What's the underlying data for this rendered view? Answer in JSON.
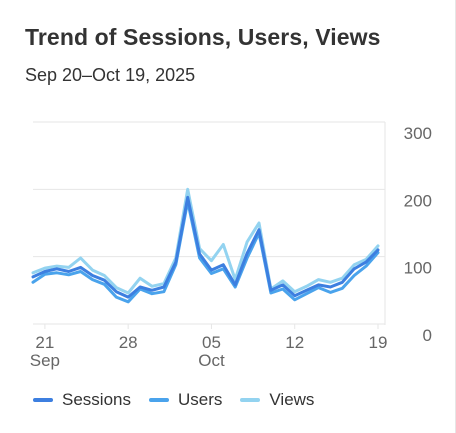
{
  "header": {
    "title": "Trend of Sessions, Users, Views",
    "subtitle": "Sep 20–Oct 19, 2025"
  },
  "colors": {
    "sessions": "#3d7fe0",
    "users": "#4aa3ec",
    "views": "#93d3f0",
    "grid": "#e6e6e6",
    "axis_text": "#666666"
  },
  "chart_data": {
    "type": "line",
    "x": [
      "2025-09-20",
      "2025-09-21",
      "2025-09-22",
      "2025-09-23",
      "2025-09-24",
      "2025-09-25",
      "2025-09-26",
      "2025-09-27",
      "2025-09-28",
      "2025-09-29",
      "2025-09-30",
      "2025-10-01",
      "2025-10-02",
      "2025-10-03",
      "2025-10-04",
      "2025-10-05",
      "2025-10-06",
      "2025-10-07",
      "2025-10-08",
      "2025-10-09",
      "2025-10-10",
      "2025-10-11",
      "2025-10-12",
      "2025-10-13",
      "2025-10-14",
      "2025-10-15",
      "2025-10-16",
      "2025-10-17",
      "2025-10-18",
      "2025-10-19"
    ],
    "x_ticks": [
      {
        "date": "2025-09-21",
        "label": "21",
        "sublabel": "Sep"
      },
      {
        "date": "2025-09-28",
        "label": "28",
        "sublabel": ""
      },
      {
        "date": "2025-10-05",
        "label": "05",
        "sublabel": "Oct"
      },
      {
        "date": "2025-10-12",
        "label": "12",
        "sublabel": ""
      },
      {
        "date": "2025-10-19",
        "label": "19",
        "sublabel": ""
      }
    ],
    "y_ticks": [
      0,
      100,
      200,
      300
    ],
    "ylim": [
      0,
      300
    ],
    "y_axis_position": "right",
    "grid": true,
    "legend_position": "bottom-left",
    "series": [
      {
        "name": "Sessions",
        "color_key": "sessions",
        "values": [
          70,
          78,
          82,
          78,
          84,
          72,
          65,
          48,
          40,
          55,
          50,
          55,
          92,
          188,
          104,
          80,
          88,
          58,
          105,
          140,
          50,
          58,
          42,
          50,
          58,
          55,
          62,
          82,
          92,
          110
        ]
      },
      {
        "name": "Users",
        "color_key": "users",
        "values": [
          62,
          74,
          76,
          73,
          78,
          66,
          59,
          40,
          33,
          52,
          45,
          48,
          88,
          182,
          98,
          75,
          82,
          55,
          98,
          135,
          46,
          52,
          36,
          45,
          54,
          47,
          53,
          72,
          86,
          106
        ]
      },
      {
        "name": "Views",
        "color_key": "views",
        "values": [
          76,
          83,
          86,
          84,
          98,
          80,
          72,
          54,
          46,
          68,
          56,
          60,
          98,
          200,
          112,
          94,
          118,
          66,
          122,
          150,
          52,
          64,
          48,
          56,
          66,
          62,
          68,
          88,
          96,
          116
        ]
      }
    ]
  }
}
